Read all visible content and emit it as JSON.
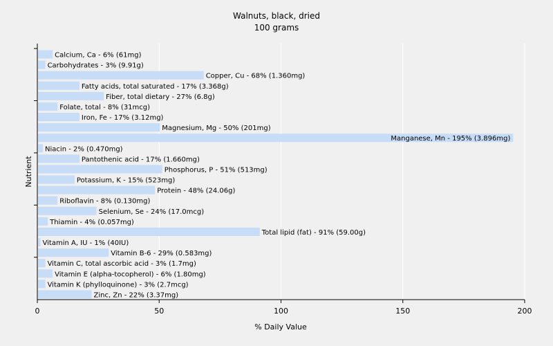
{
  "chart_data": {
    "type": "bar",
    "orientation": "horizontal",
    "title": "Walnuts, black, dried",
    "subtitle": "100 grams",
    "xlabel": "% Daily Value",
    "ylabel": "Nutrient",
    "xlim": [
      0,
      200
    ],
    "xticks": [
      0,
      50,
      100,
      150,
      200
    ],
    "grid": true,
    "bar_color": "#c6dcf7",
    "grid_color": "#ffffff",
    "categories": [
      "Calcium, Ca",
      "Carbohydrates",
      "Copper, Cu",
      "Fatty acids, total saturated",
      "Fiber, total dietary",
      "Folate, total",
      "Iron, Fe",
      "Magnesium, Mg",
      "Manganese, Mn",
      "Niacin",
      "Pantothenic acid",
      "Phosphorus, P",
      "Potassium, K",
      "Protein",
      "Riboflavin",
      "Selenium, Se",
      "Thiamin",
      "Total lipid (fat)",
      "Vitamin A, IU",
      "Vitamin B-6",
      "Vitamin C, total ascorbic acid",
      "Vitamin E (alpha-tocopherol)",
      "Vitamin K (phylloquinone)",
      "Zinc, Zn"
    ],
    "values": [
      6,
      3,
      68,
      17,
      27,
      8,
      17,
      50,
      195,
      2,
      17,
      51,
      15,
      48,
      8,
      24,
      4,
      91,
      1,
      29,
      3,
      6,
      3,
      22
    ],
    "data_labels": [
      "Calcium, Ca - 6% (61mg)",
      "Carbohydrates - 3% (9.91g)",
      "Copper, Cu - 68% (1.360mg)",
      "Fatty acids, total saturated - 17% (3.368g)",
      "Fiber, total dietary - 27% (6.8g)",
      "Folate, total - 8% (31mcg)",
      "Iron, Fe - 17% (3.12mg)",
      "Magnesium, Mg - 50% (201mg)",
      "Manganese, Mn - 195% (3.896mg)",
      "Niacin - 2% (0.470mg)",
      "Pantothenic acid - 17% (1.660mg)",
      "Phosphorus, P - 51% (513mg)",
      "Potassium, K - 15% (523mg)",
      "Protein - 48% (24.06g)",
      "Riboflavin - 8% (0.130mg)",
      "Selenium, Se - 24% (17.0mcg)",
      "Thiamin - 4% (0.057mg)",
      "Total lipid (fat) - 91% (59.00g)",
      "Vitamin A, IU - 1% (40IU)",
      "Vitamin B-6 - 29% (0.583mg)",
      "Vitamin C, total ascorbic acid - 3% (1.7mg)",
      "Vitamin E (alpha-tocopherol) - 6% (1.80mg)",
      "Vitamin K (phylloquinone) - 3% (2.7mcg)",
      "Zinc, Zn - 22% (3.37mg)"
    ]
  }
}
